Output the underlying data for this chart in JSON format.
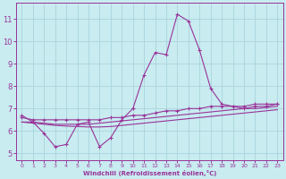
{
  "x_ticks": [
    0,
    1,
    2,
    3,
    4,
    5,
    6,
    7,
    8,
    9,
    10,
    11,
    12,
    13,
    14,
    15,
    16,
    17,
    18,
    19,
    20,
    21,
    22,
    23
  ],
  "xlim": [
    -0.5,
    23.5
  ],
  "ylim": [
    4.7,
    11.7
  ],
  "yticks": [
    5,
    6,
    7,
    8,
    9,
    10,
    11
  ],
  "xlabel": "Windchill (Refroidissement éolien,°C)",
  "bg_color": "#c8ecf0",
  "grid_color": "#aad4dc",
  "line_color": "#993399",
  "line1_y": [
    6.7,
    6.4,
    5.9,
    5.3,
    5.4,
    6.3,
    6.4,
    5.3,
    5.7,
    6.5,
    7.0,
    8.5,
    9.5,
    9.4,
    11.2,
    10.9,
    9.6,
    7.9,
    7.2,
    7.1,
    7.0,
    7.1,
    7.1,
    7.2
  ],
  "line2_y": [
    6.6,
    6.5,
    6.5,
    6.5,
    6.5,
    6.5,
    6.5,
    6.5,
    6.6,
    6.6,
    6.7,
    6.7,
    6.8,
    6.9,
    6.9,
    7.0,
    7.0,
    7.1,
    7.1,
    7.1,
    7.1,
    7.2,
    7.2,
    7.2
  ],
  "line3_y": [
    6.4,
    6.4,
    6.35,
    6.3,
    6.3,
    6.3,
    6.3,
    6.35,
    6.4,
    6.45,
    6.5,
    6.55,
    6.6,
    6.65,
    6.7,
    6.75,
    6.8,
    6.85,
    6.9,
    6.95,
    7.0,
    7.0,
    7.05,
    7.1
  ],
  "line4_y": [
    6.4,
    6.35,
    6.3,
    6.25,
    6.22,
    6.2,
    6.18,
    6.18,
    6.2,
    6.25,
    6.3,
    6.35,
    6.4,
    6.45,
    6.5,
    6.55,
    6.6,
    6.65,
    6.7,
    6.75,
    6.8,
    6.85,
    6.9,
    6.95
  ],
  "marker": "+",
  "marker_size": 3.5,
  "linewidth": 0.8
}
